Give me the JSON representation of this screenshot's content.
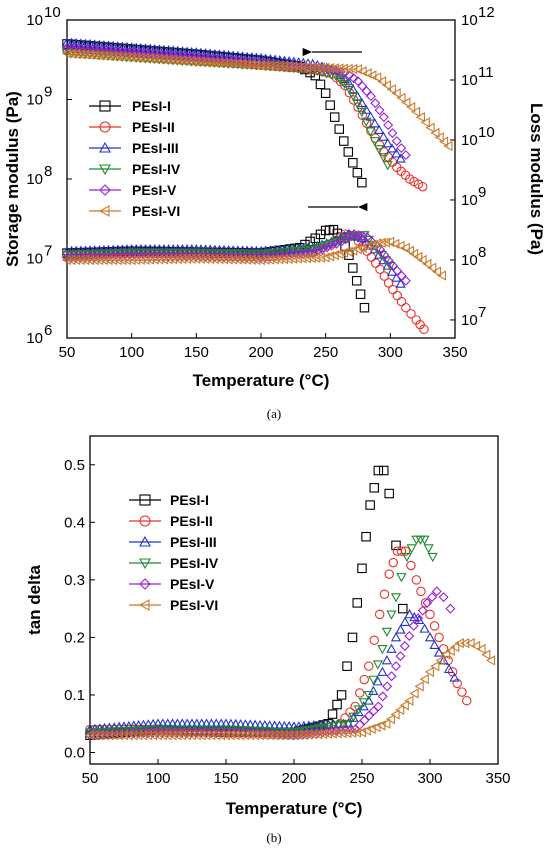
{
  "colors": {
    "PEsI-I": "#000000",
    "PEsI-II": "#e8322b",
    "PEsI-III": "#1f35c9",
    "PEsI-IV": "#1c8a2e",
    "PEsI-V": "#9b20d6",
    "PEsI-VI": "#c97a2a"
  },
  "chart_data": [
    {
      "type": "line",
      "panel_caption": "(a)",
      "xlabel": "Temperature (°C)",
      "ylabel_left": "Storage modulus (Pa)",
      "ylabel_right": "Loss modulus (Pa)",
      "xlim": [
        50,
        350
      ],
      "ylim_left": [
        1000000,
        10000000000
      ],
      "ylim_right": [
        5000000,
        1000000000000
      ],
      "yscale": "log",
      "x_ticks": [
        "50",
        "100",
        "150",
        "200",
        "250",
        "300",
        "350"
      ],
      "y_left_ticks": [
        {
          "base": "10",
          "exp": "6"
        },
        {
          "base": "10",
          "exp": "7"
        },
        {
          "base": "10",
          "exp": "8"
        },
        {
          "base": "10",
          "exp": "9"
        },
        {
          "base": "10",
          "exp": "10"
        }
      ],
      "y_right_ticks": [
        {
          "base": "10",
          "exp": "7"
        },
        {
          "base": "10",
          "exp": "8"
        },
        {
          "base": "10",
          "exp": "9"
        },
        {
          "base": "10",
          "exp": "10"
        },
        {
          "base": "10",
          "exp": "11"
        },
        {
          "base": "10",
          "exp": "12"
        }
      ],
      "legend": [
        "PEsI-I",
        "PEsI-II",
        "PEsI-III",
        "PEsI-IV",
        "PEsI-V",
        "PEsI-VI"
      ],
      "legend_position": "left",
      "grid": false,
      "annotations": [
        "arrow pointing left near storage modulus curves",
        "arrow pointing right near loss modulus curves"
      ],
      "series": [
        {
          "name": "PEsI-I",
          "marker": "square",
          "axis": "left",
          "x": [
            50,
            100,
            150,
            200,
            230,
            242,
            250,
            257,
            264,
            271,
            278
          ],
          "y": [
            5000000000.0,
            4300000000.0,
            3700000000.0,
            3100000000.0,
            2600000000.0,
            2000000000.0,
            1200000000.0,
            600000000.0,
            300000000.0,
            160000000.0,
            90000000.0
          ]
        },
        {
          "name": "PEsI-II",
          "marker": "circle",
          "axis": "left",
          "x": [
            50,
            100,
            150,
            200,
            240,
            255,
            265,
            275,
            285,
            295,
            305,
            315,
            325
          ],
          "y": [
            4200000000.0,
            3600000000.0,
            3100000000.0,
            2700000000.0,
            2400000000.0,
            2100000000.0,
            1500000000.0,
            800000000.0,
            400000000.0,
            220000000.0,
            140000000.0,
            100000000.0,
            80000000.0
          ]
        },
        {
          "name": "PEsI-III",
          "marker": "triangle-up",
          "axis": "left",
          "x": [
            50,
            100,
            150,
            200,
            240,
            258,
            268,
            278,
            288,
            298,
            308
          ],
          "y": [
            5200000000.0,
            4500000000.0,
            3900000000.0,
            3300000000.0,
            2800000000.0,
            2300000000.0,
            1600000000.0,
            900000000.0,
            500000000.0,
            280000000.0,
            180000000.0
          ]
        },
        {
          "name": "PEsI-IV",
          "marker": "triangle-down",
          "axis": "left",
          "x": [
            50,
            100,
            150,
            200,
            240,
            258,
            268,
            278,
            288,
            298
          ],
          "y": [
            3900000000.0,
            3400000000.0,
            3000000000.0,
            2700000000.0,
            2400000000.0,
            2000000000.0,
            1400000000.0,
            700000000.0,
            300000000.0,
            150000000.0
          ]
        },
        {
          "name": "PEsI-V",
          "marker": "diamond",
          "axis": "left",
          "x": [
            50,
            100,
            150,
            200,
            245,
            265,
            275,
            285,
            295,
            305,
            312
          ],
          "y": [
            4500000000.0,
            3900000000.0,
            3400000000.0,
            2900000000.0,
            2500000000.0,
            2200000000.0,
            1700000000.0,
            1100000000.0,
            600000000.0,
            300000000.0,
            200000000.0
          ]
        },
        {
          "name": "PEsI-VI",
          "marker": "triangle-left",
          "axis": "left",
          "x": [
            50,
            100,
            150,
            200,
            250,
            275,
            290,
            305,
            320,
            335,
            345
          ],
          "y": [
            3800000000.0,
            3400000000.0,
            3000000000.0,
            2700000000.0,
            2500000000.0,
            2400000000.0,
            1900000000.0,
            1200000000.0,
            700000000.0,
            380000000.0,
            260000000.0
          ]
        },
        {
          "name": "PEsI-I",
          "marker": "square",
          "axis": "right",
          "x": [
            50,
            100,
            150,
            200,
            230,
            242,
            250,
            256,
            262,
            268,
            274,
            280
          ],
          "y": [
            130000000.0,
            140000000.0,
            135000000.0,
            130000000.0,
            160000000.0,
            230000000.0,
            310000000.0,
            320000000.0,
            240000000.0,
            120000000.0,
            45000000.0,
            16000000.0
          ]
        },
        {
          "name": "PEsI-II",
          "marker": "circle",
          "axis": "right",
          "x": [
            50,
            100,
            150,
            200,
            240,
            255,
            265,
            272,
            282,
            292,
            302,
            312,
            320,
            326
          ],
          "y": [
            120000000.0,
            130000000.0,
            130000000.0,
            125000000.0,
            140000000.0,
            190000000.0,
            270000000.0,
            250000000.0,
            140000000.0,
            70000000.0,
            32000000.0,
            16000000.0,
            10000000.0,
            7000000.0
          ]
        },
        {
          "name": "PEsI-III",
          "marker": "triangle-up",
          "axis": "right",
          "x": [
            50,
            100,
            150,
            200,
            240,
            258,
            268,
            278,
            288,
            298,
            308
          ],
          "y": [
            140000000.0,
            150000000.0,
            150000000.0,
            140000000.0,
            160000000.0,
            210000000.0,
            270000000.0,
            230000000.0,
            150000000.0,
            80000000.0,
            40000000.0
          ]
        },
        {
          "name": "PEsI-IV",
          "marker": "triangle-down",
          "axis": "right",
          "x": [
            50,
            100,
            150,
            200,
            240,
            258,
            270,
            280,
            290,
            300
          ],
          "y": [
            120000000.0,
            130000000.0,
            130000000.0,
            125000000.0,
            150000000.0,
            200000000.0,
            250000000.0,
            260000000.0,
            150000000.0,
            80000000.0
          ]
        },
        {
          "name": "PEsI-V",
          "marker": "diamond",
          "axis": "right",
          "x": [
            50,
            100,
            150,
            200,
            240,
            262,
            272,
            282,
            292,
            302,
            312
          ],
          "y": [
            110000000.0,
            115000000.0,
            115000000.0,
            110000000.0,
            130000000.0,
            200000000.0,
            270000000.0,
            240000000.0,
            150000000.0,
            80000000.0,
            45000000.0
          ]
        },
        {
          "name": "PEsI-VI",
          "marker": "triangle-left",
          "axis": "right",
          "x": [
            50,
            100,
            150,
            200,
            250,
            275,
            290,
            300,
            312,
            325,
            340
          ],
          "y": [
            100000000.0,
            100000000.0,
            105000000.0,
            100000000.0,
            110000000.0,
            150000000.0,
            190000000.0,
            200000000.0,
            160000000.0,
            100000000.0,
            55000000.0
          ]
        }
      ]
    },
    {
      "type": "line",
      "panel_caption": "(b)",
      "xlabel": "Temperature (°C)",
      "ylabel": "tan delta",
      "xlim": [
        50,
        350
      ],
      "ylim": [
        -0.02,
        0.55
      ],
      "x_ticks": [
        "50",
        "100",
        "150",
        "200",
        "250",
        "300",
        "350"
      ],
      "y_ticks": [
        "0.0",
        "0.1",
        "0.2",
        "0.3",
        "0.4",
        "0.5"
      ],
      "legend": [
        "PEsI-I",
        "PEsI-II",
        "PEsI-III",
        "PEsI-IV",
        "PEsI-V",
        "PEsI-VI"
      ],
      "legend_position": "top-left",
      "grid": false,
      "series": [
        {
          "name": "PEsI-I",
          "marker": "square",
          "x": [
            50,
            100,
            150,
            200,
            225,
            235,
            243,
            250,
            256,
            262,
            266,
            270,
            275,
            280
          ],
          "y": [
            0.03,
            0.04,
            0.035,
            0.035,
            0.05,
            0.1,
            0.2,
            0.32,
            0.43,
            0.49,
            0.49,
            0.45,
            0.36,
            0.25
          ]
        },
        {
          "name": "PEsI-II",
          "marker": "circle",
          "x": [
            50,
            100,
            150,
            200,
            230,
            245,
            255,
            263,
            270,
            276,
            282,
            290,
            300,
            310,
            320,
            327
          ],
          "y": [
            0.04,
            0.04,
            0.035,
            0.035,
            0.04,
            0.08,
            0.15,
            0.24,
            0.31,
            0.35,
            0.35,
            0.3,
            0.24,
            0.18,
            0.12,
            0.09
          ]
        },
        {
          "name": "PEsI-III",
          "marker": "triangle-up",
          "x": [
            50,
            100,
            150,
            200,
            240,
            255,
            265,
            275,
            285,
            292,
            300,
            310,
            318
          ],
          "y": [
            0.04,
            0.05,
            0.05,
            0.045,
            0.05,
            0.09,
            0.14,
            0.2,
            0.24,
            0.23,
            0.2,
            0.16,
            0.13
          ]
        },
        {
          "name": "PEsI-IV",
          "marker": "triangle-down",
          "x": [
            50,
            100,
            150,
            200,
            240,
            255,
            265,
            275,
            283,
            290,
            296,
            302
          ],
          "y": [
            0.035,
            0.04,
            0.04,
            0.035,
            0.05,
            0.1,
            0.18,
            0.27,
            0.34,
            0.37,
            0.37,
            0.34
          ]
        },
        {
          "name": "PEsI-V",
          "marker": "diamond",
          "x": [
            50,
            100,
            150,
            200,
            245,
            262,
            275,
            288,
            298,
            305,
            310,
            315
          ],
          "y": [
            0.03,
            0.035,
            0.035,
            0.03,
            0.04,
            0.08,
            0.15,
            0.22,
            0.26,
            0.28,
            0.27,
            0.25
          ]
        },
        {
          "name": "PEsI-VI",
          "marker": "triangle-left",
          "x": [
            50,
            100,
            150,
            200,
            250,
            268,
            285,
            300,
            312,
            322,
            330,
            338,
            345
          ],
          "y": [
            0.03,
            0.03,
            0.03,
            0.03,
            0.035,
            0.05,
            0.09,
            0.14,
            0.17,
            0.19,
            0.19,
            0.18,
            0.16
          ]
        }
      ]
    }
  ]
}
